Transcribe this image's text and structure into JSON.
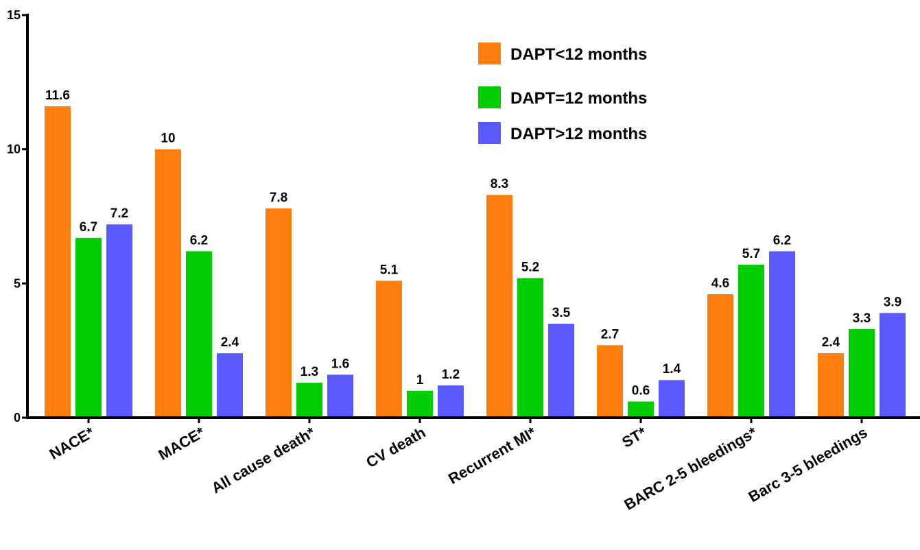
{
  "chart_data": {
    "type": "bar",
    "categories": [
      "NACE*",
      "MACE*",
      "All cause death*",
      "CV death",
      "Recurrent MI*",
      "ST*",
      "BARC 2-5 bleedings*",
      "Barc 3-5 bleedings"
    ],
    "series": [
      {
        "name": "DAPT<12 months",
        "color": "#FF7F0E",
        "values": [
          11.6,
          10,
          7.8,
          5.1,
          8.3,
          2.7,
          4.6,
          2.4
        ]
      },
      {
        "name": "DAPT=12 months",
        "color": "#00CC00",
        "values": [
          6.7,
          6.2,
          1.3,
          1,
          5.2,
          0.6,
          5.7,
          3.3
        ]
      },
      {
        "name": "DAPT>12 months",
        "color": "#5A5AFF",
        "values": [
          7.2,
          2.4,
          1.6,
          1.2,
          3.5,
          1.4,
          6.2,
          3.9
        ]
      }
    ],
    "yticks": [
      "0",
      "5",
      "10",
      "15"
    ],
    "ylim": [
      0,
      15
    ],
    "grid": false,
    "legend_position": "top-right"
  }
}
